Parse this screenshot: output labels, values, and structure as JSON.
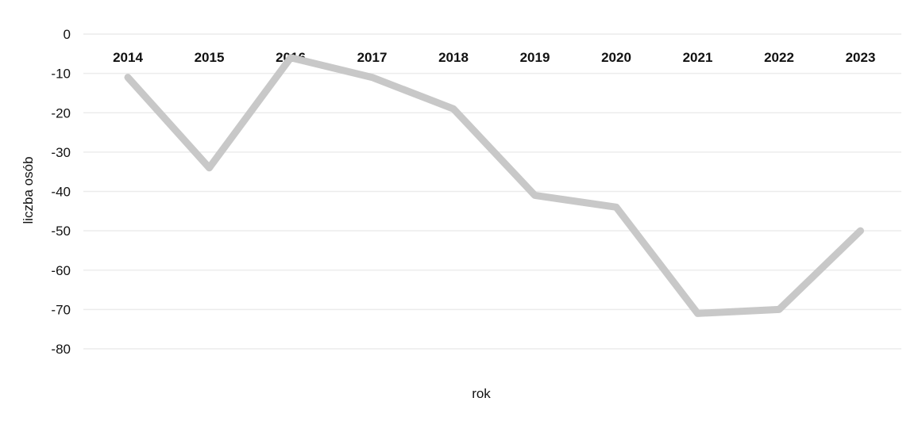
{
  "chart_data": {
    "type": "line",
    "title": "",
    "xlabel": "rok",
    "ylabel": "liczba osób",
    "categories": [
      "2014",
      "2015",
      "2016",
      "2017",
      "2018",
      "2019",
      "2020",
      "2021",
      "2022",
      "2023"
    ],
    "series": [
      {
        "values": [
          -11,
          -34,
          -6,
          -11,
          -19,
          -41,
          -44,
          -71,
          -70,
          -50
        ]
      }
    ],
    "ylim": [
      -80,
      0
    ],
    "yticks": [
      "0",
      "-10",
      "-20",
      "-30",
      "-40",
      "-50",
      "-60",
      "-70",
      "-80"
    ],
    "grid": true,
    "x_axis_position": "top",
    "line_color": "#c8c8c8"
  }
}
